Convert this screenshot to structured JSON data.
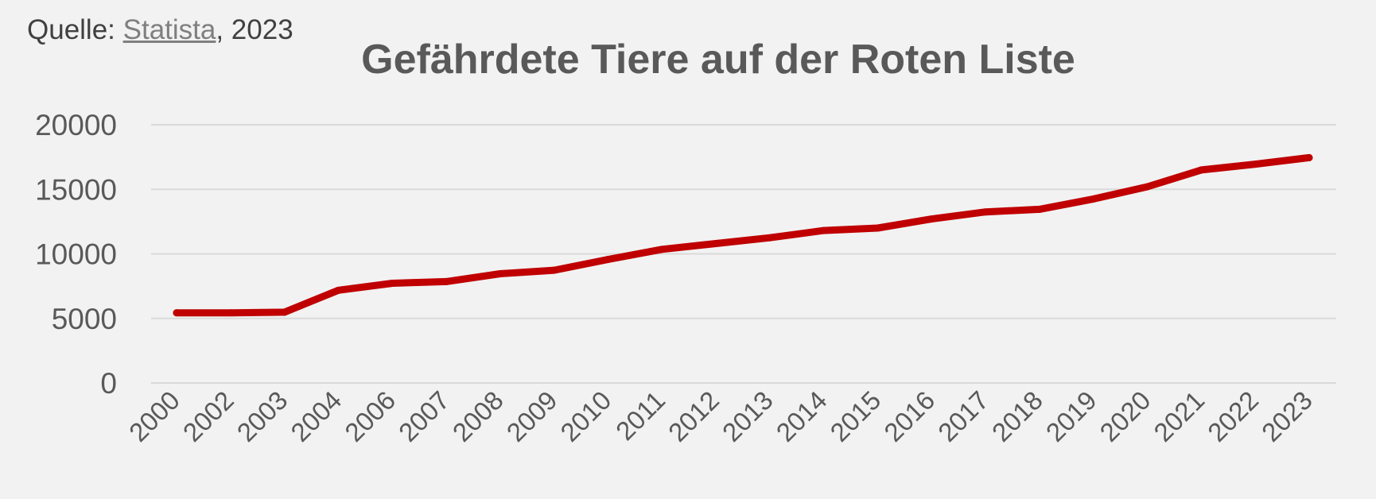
{
  "source": {
    "prefix": "Quelle: ",
    "link_text": "Statista",
    "suffix": ", 2023"
  },
  "chart_data": {
    "type": "line",
    "title": "Gefährdete Tiere auf der Roten Liste",
    "xlabel": "",
    "ylabel": "",
    "categories": [
      "2000",
      "2002",
      "2003",
      "2004",
      "2006",
      "2007",
      "2008",
      "2009",
      "2010",
      "2011",
      "2012",
      "2013",
      "2014",
      "2015",
      "2016",
      "2017",
      "2018",
      "2019",
      "2020",
      "2021",
      "2022",
      "2023"
    ],
    "series": [
      {
        "name": "",
        "color": "#c00000",
        "values": [
          5435,
          5435,
          5483,
          7180,
          7725,
          7851,
          8462,
          8735,
          9570,
          10350,
          10800,
          11250,
          11810,
          12000,
          12700,
          13250,
          13450,
          14250,
          15200,
          16500,
          16950,
          17450
        ]
      }
    ],
    "ylim": [
      0,
      20000
    ],
    "yticks": [
      0,
      5000,
      10000,
      15000,
      20000
    ],
    "grid": true,
    "legend": "none"
  }
}
